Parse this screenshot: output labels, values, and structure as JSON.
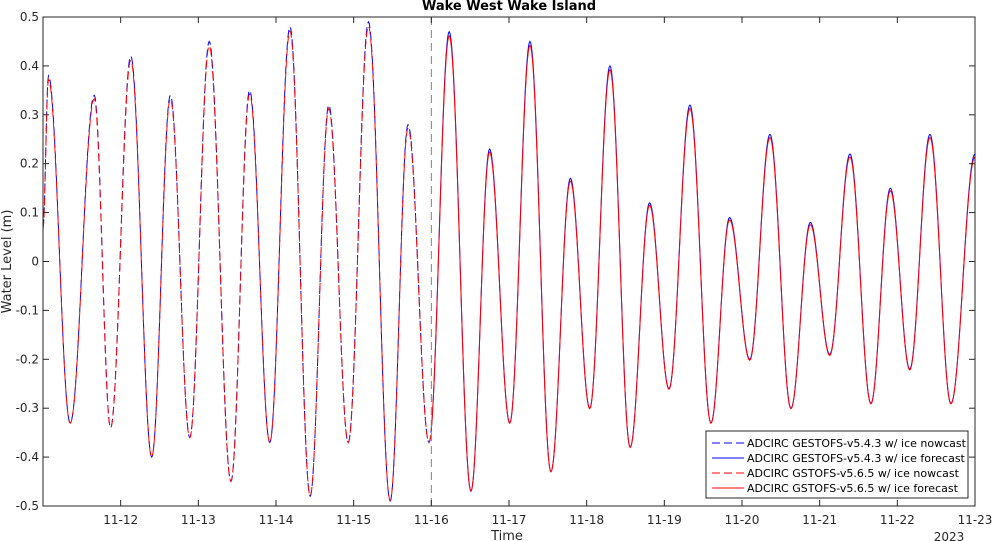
{
  "chart_data": {
    "type": "line",
    "title": "Wake West Wake Island",
    "xlabel": "Time",
    "ylabel": "Water Level (m)",
    "year_label": "2023",
    "x_unit": "day of November 2023",
    "xlim": [
      11.0,
      23.0
    ],
    "ylim": [
      -0.5,
      0.5
    ],
    "x_ticks": [
      12,
      13,
      14,
      15,
      16,
      17,
      18,
      19,
      20,
      21,
      22,
      23
    ],
    "x_tick_labels": [
      "11-12",
      "11-13",
      "11-14",
      "11-15",
      "11-16",
      "11-17",
      "11-18",
      "11-19",
      "11-20",
      "11-21",
      "11-22",
      "11-23"
    ],
    "y_ticks": [
      -0.5,
      -0.4,
      -0.3,
      -0.2,
      -0.1,
      0,
      0.1,
      0.2,
      0.3,
      0.4,
      0.5
    ],
    "y_tick_labels": [
      "-0.5",
      "-0.4",
      "-0.3",
      "-0.2",
      "-0.1",
      "0",
      "0.1",
      "0.2",
      "0.3",
      "0.4",
      "0.5"
    ],
    "nowcast_forecast_divider_x": 16.0,
    "legend_position": "bottom-right",
    "grid": false,
    "series": [
      {
        "name": "ADCIRC GESTOFS-v5.4.3 w/ ice nowcast",
        "color": "#0000ff",
        "style": "dashed",
        "segment": "nowcast"
      },
      {
        "name": "ADCIRC GESTOFS-v5.4.3 w/ ice forecast",
        "color": "#0000ff",
        "style": "solid",
        "segment": "forecast"
      },
      {
        "name": "ADCIRC GSTOFS-v5.6.5 w/ ice nowcast",
        "color": "#ff0000",
        "style": "dashed",
        "segment": "nowcast"
      },
      {
        "name": "ADCIRC GSTOFS-v5.6.5 w/ ice forecast",
        "color": "#ff0000",
        "style": "solid",
        "segment": "forecast"
      }
    ],
    "extrema": [
      [
        11.0,
        0.07
      ],
      [
        11.07,
        0.38
      ],
      [
        11.35,
        -0.33
      ],
      [
        11.66,
        0.34
      ],
      [
        11.87,
        -0.34
      ],
      [
        12.13,
        0.42
      ],
      [
        12.4,
        -0.4
      ],
      [
        12.64,
        0.34
      ],
      [
        12.89,
        -0.36
      ],
      [
        13.14,
        0.45
      ],
      [
        13.42,
        -0.45
      ],
      [
        13.66,
        0.35
      ],
      [
        13.92,
        -0.37
      ],
      [
        14.18,
        0.48
      ],
      [
        14.44,
        -0.48
      ],
      [
        14.68,
        0.32
      ],
      [
        14.93,
        -0.37
      ],
      [
        15.19,
        0.49
      ],
      [
        15.47,
        -0.49
      ],
      [
        15.7,
        0.28
      ],
      [
        15.97,
        -0.37
      ],
      [
        16.23,
        0.47
      ],
      [
        16.51,
        -0.47
      ],
      [
        16.75,
        0.23
      ],
      [
        17.01,
        -0.33
      ],
      [
        17.27,
        0.45
      ],
      [
        17.54,
        -0.43
      ],
      [
        17.79,
        0.17
      ],
      [
        18.04,
        -0.3
      ],
      [
        18.3,
        0.4
      ],
      [
        18.56,
        -0.38
      ],
      [
        18.81,
        0.12
      ],
      [
        19.06,
        -0.26
      ],
      [
        19.33,
        0.32
      ],
      [
        19.6,
        -0.33
      ],
      [
        19.84,
        0.09
      ],
      [
        20.1,
        -0.2
      ],
      [
        20.36,
        0.26
      ],
      [
        20.63,
        -0.3
      ],
      [
        20.88,
        0.08
      ],
      [
        21.13,
        -0.19
      ],
      [
        21.39,
        0.22
      ],
      [
        21.66,
        -0.29
      ],
      [
        21.91,
        0.15
      ],
      [
        22.16,
        -0.22
      ],
      [
        22.42,
        0.26
      ],
      [
        22.69,
        -0.29
      ],
      [
        23.0,
        0.22
      ]
    ]
  }
}
